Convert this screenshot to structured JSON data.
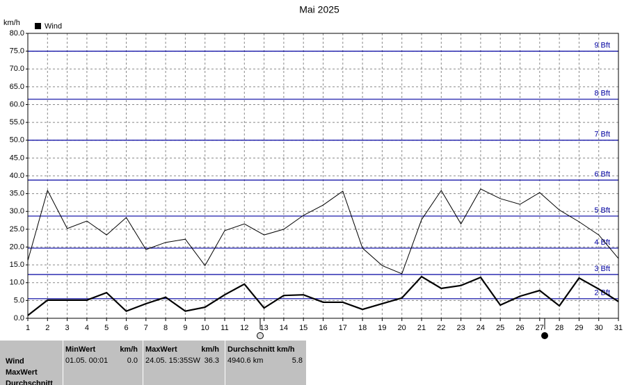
{
  "chart_data": {
    "type": "line",
    "title": "Mai 2025",
    "y_label": "km/h",
    "x": [
      1,
      2,
      3,
      4,
      5,
      6,
      7,
      8,
      9,
      10,
      11,
      12,
      13,
      14,
      15,
      16,
      17,
      18,
      19,
      20,
      21,
      22,
      23,
      24,
      25,
      26,
      27,
      28,
      29,
      30,
      31
    ],
    "xlim": [
      1,
      31
    ],
    "xticks": [
      1,
      2,
      3,
      4,
      5,
      6,
      7,
      8,
      9,
      10,
      11,
      12,
      13,
      14,
      15,
      16,
      17,
      18,
      19,
      20,
      21,
      22,
      23,
      24,
      25,
      26,
      27,
      28,
      29,
      30,
      31
    ],
    "ylim": [
      0,
      80
    ],
    "yticks": [
      {
        "value": 0,
        "label": "0.0"
      },
      {
        "value": 5,
        "label": "5.0"
      },
      {
        "value": 10,
        "label": "10.0"
      },
      {
        "value": 15,
        "label": "15.0"
      },
      {
        "value": 20,
        "label": "20.0"
      },
      {
        "value": 25,
        "label": "25.0"
      },
      {
        "value": 30,
        "label": "30.0"
      },
      {
        "value": 35,
        "label": "35.0"
      },
      {
        "value": 40,
        "label": "40.0"
      },
      {
        "value": 45,
        "label": "45.0"
      },
      {
        "value": 50,
        "label": "50.0"
      },
      {
        "value": 55,
        "label": "55.0"
      },
      {
        "value": 60,
        "label": "60.0"
      },
      {
        "value": 65,
        "label": "65.0"
      },
      {
        "value": 70,
        "label": "70.0"
      },
      {
        "value": 75,
        "label": "75.0"
      },
      {
        "value": 80,
        "label": "80.0"
      }
    ],
    "grid": true,
    "series": [
      {
        "color": "#000000",
        "values": [
          16.2,
          35.9,
          25.2,
          27.3,
          23.4,
          28.3,
          19.3,
          21.3,
          22.2,
          14.8,
          24.6,
          26.5,
          23.4,
          25.0,
          28.9,
          31.8,
          35.7,
          19.7,
          14.8,
          12.5,
          27.7,
          35.9,
          26.5,
          36.3,
          33.6,
          32.0,
          35.3,
          30.4,
          27.1,
          23.4,
          16.8
        ]
      },
      {
        "name": "Wind",
        "color": "#000000",
        "values": [
          0.8,
          5.1,
          5.1,
          5.1,
          7.2,
          2.0,
          4.1,
          5.9,
          2.0,
          3.1,
          6.6,
          9.6,
          2.9,
          6.4,
          6.6,
          4.5,
          4.5,
          2.5,
          4.1,
          5.7,
          11.7,
          8.4,
          9.2,
          11.5,
          3.7,
          6.2,
          7.8,
          3.5,
          11.3,
          8.2,
          4.7
        ]
      }
    ],
    "reference_lines": [
      {
        "value": 75,
        "label": "9 Bft"
      },
      {
        "value": 61.5,
        "label": "8 Bft"
      },
      {
        "value": 50,
        "label": "7 Bft"
      },
      {
        "value": 38.8,
        "label": "6 Bft"
      },
      {
        "value": 28.7,
        "label": "5 Bft"
      },
      {
        "value": 19.7,
        "label": "4 Bft"
      },
      {
        "value": 12.3,
        "label": "3 Bft"
      },
      {
        "value": 5.5,
        "label": "2 Bft"
      }
    ],
    "reference_color": "#0000a0"
  },
  "stats": {
    "row_labels": [
      "Wind",
      "MaxWert",
      "Durchschnitt"
    ],
    "columns": [
      {
        "title": "MinWert",
        "unit": "km/h",
        "when": "01.05.  00:01",
        "value": "0.0"
      },
      {
        "title": "MaxWert",
        "unit": "km/h",
        "when": "24.05.  15:35SW",
        "value": "36.3"
      },
      {
        "title": "Durchschnitt km/h",
        "when": "4940.6 km",
        "value": "5.8"
      }
    ]
  }
}
